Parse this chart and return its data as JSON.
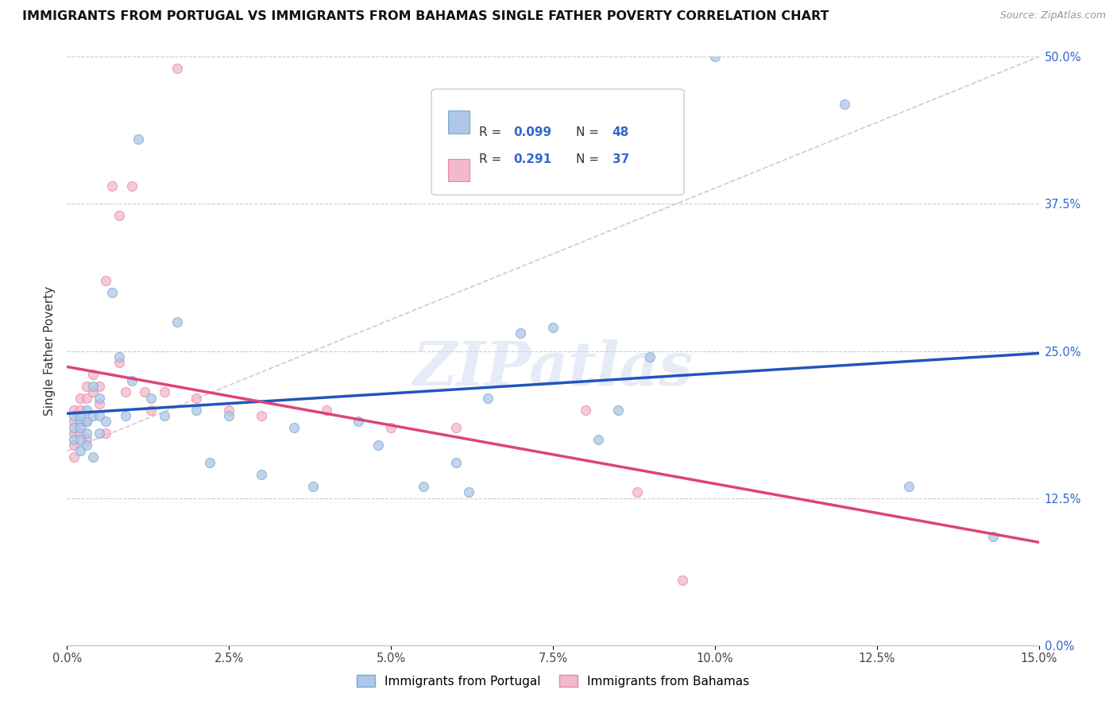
{
  "title": "IMMIGRANTS FROM PORTUGAL VS IMMIGRANTS FROM BAHAMAS SINGLE FATHER POVERTY CORRELATION CHART",
  "source": "Source: ZipAtlas.com",
  "ylabel": "Single Father Poverty",
  "legend_label_blue": "Immigrants from Portugal",
  "legend_label_pink": "Immigrants from Bahamas",
  "blue_color": "#aec6e8",
  "pink_color": "#f4b8cb",
  "blue_edge_color": "#7aaad0",
  "pink_edge_color": "#e888a8",
  "trend_blue_color": "#2255bb",
  "trend_pink_color": "#dd4477",
  "trend_dashed_color": "#cccccc",
  "xlim": [
    0.0,
    0.15
  ],
  "ylim": [
    0.0,
    0.5
  ],
  "xtick_vals": [
    0.0,
    0.025,
    0.05,
    0.075,
    0.1,
    0.125,
    0.15
  ],
  "ytick_vals": [
    0.0,
    0.125,
    0.25,
    0.375,
    0.5
  ],
  "ytick_labels": [
    "0.0%",
    "12.5%",
    "25.0%",
    "37.5%",
    "50.0%"
  ],
  "blue_scatter_x": [
    0.001,
    0.001,
    0.001,
    0.002,
    0.002,
    0.002,
    0.002,
    0.002,
    0.003,
    0.003,
    0.003,
    0.003,
    0.004,
    0.004,
    0.004,
    0.005,
    0.005,
    0.005,
    0.006,
    0.007,
    0.008,
    0.009,
    0.01,
    0.011,
    0.013,
    0.015,
    0.017,
    0.02,
    0.022,
    0.025,
    0.03,
    0.035,
    0.038,
    0.045,
    0.048,
    0.055,
    0.06,
    0.062,
    0.065,
    0.07,
    0.075,
    0.082,
    0.085,
    0.09,
    0.1,
    0.12,
    0.13,
    0.143
  ],
  "blue_scatter_y": [
    0.195,
    0.185,
    0.175,
    0.19,
    0.195,
    0.185,
    0.175,
    0.165,
    0.2,
    0.19,
    0.18,
    0.17,
    0.22,
    0.195,
    0.16,
    0.21,
    0.195,
    0.18,
    0.19,
    0.3,
    0.245,
    0.195,
    0.225,
    0.43,
    0.21,
    0.195,
    0.275,
    0.2,
    0.155,
    0.195,
    0.145,
    0.185,
    0.135,
    0.19,
    0.17,
    0.135,
    0.155,
    0.13,
    0.21,
    0.265,
    0.27,
    0.175,
    0.2,
    0.245,
    0.5,
    0.46,
    0.135,
    0.092
  ],
  "pink_scatter_x": [
    0.001,
    0.001,
    0.001,
    0.001,
    0.001,
    0.002,
    0.002,
    0.002,
    0.002,
    0.003,
    0.003,
    0.003,
    0.003,
    0.004,
    0.004,
    0.005,
    0.005,
    0.006,
    0.006,
    0.007,
    0.008,
    0.008,
    0.009,
    0.01,
    0.012,
    0.013,
    0.015,
    0.017,
    0.02,
    0.025,
    0.03,
    0.04,
    0.05,
    0.06,
    0.08,
    0.088,
    0.095
  ],
  "pink_scatter_y": [
    0.2,
    0.19,
    0.18,
    0.17,
    0.16,
    0.21,
    0.2,
    0.19,
    0.18,
    0.22,
    0.21,
    0.19,
    0.175,
    0.23,
    0.215,
    0.22,
    0.205,
    0.31,
    0.18,
    0.39,
    0.365,
    0.24,
    0.215,
    0.39,
    0.215,
    0.2,
    0.215,
    0.49,
    0.21,
    0.2,
    0.195,
    0.2,
    0.185,
    0.185,
    0.2,
    0.13,
    0.055
  ],
  "watermark": "ZIPatlas",
  "marker_size": 75,
  "marker_alpha": 0.75
}
